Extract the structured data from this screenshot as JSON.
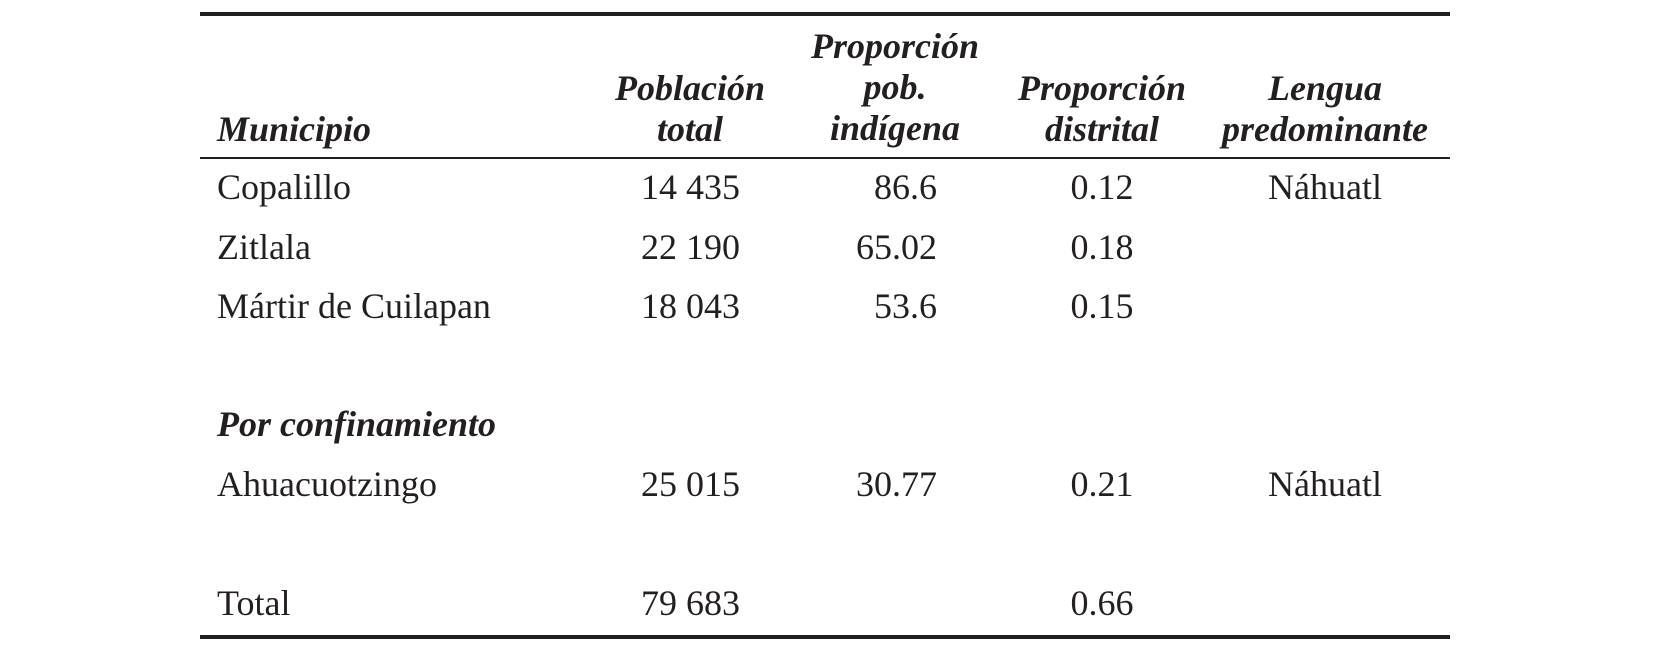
{
  "table": {
    "headers": {
      "municipio": "Municipio",
      "poblacion": "Población\ntotal",
      "proporcion_indigena": "Proporción\npob.\nindígena",
      "proporcion_distrital": "Proporción\ndistrital",
      "lengua": "Lengua\npredominante"
    },
    "rows": [
      {
        "municipio": "Copalillo",
        "poblacion": "14 435",
        "indigena": "86.6",
        "distrital": "0.12",
        "lengua": "Náhuatl"
      },
      {
        "municipio": "Zitlala",
        "poblacion": "22 190",
        "indigena": "65.02",
        "distrital": "0.18",
        "lengua": ""
      },
      {
        "municipio": "Mártir de Cuilapan",
        "poblacion": "18 043",
        "indigena": "53.6",
        "distrital": "0.15",
        "lengua": ""
      }
    ],
    "section_label": "Por confinamiento",
    "section_rows": [
      {
        "municipio": "Ahuacuotzingo",
        "poblacion": "25 015",
        "indigena": "30.77",
        "distrital": "0.21",
        "lengua": "Náhuatl"
      }
    ],
    "total": {
      "label": "Total",
      "poblacion": "79 683",
      "distrital": "0.66"
    }
  }
}
